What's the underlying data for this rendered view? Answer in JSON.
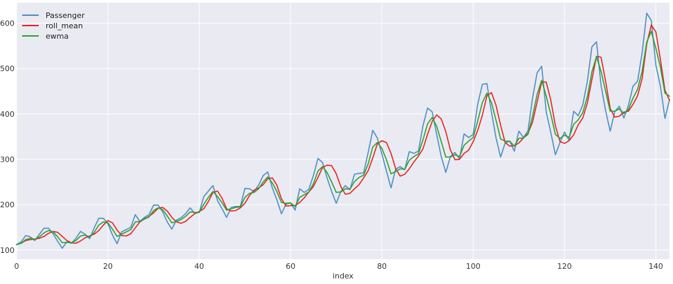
{
  "chart_data": {
    "type": "line",
    "title": "",
    "xlabel": "index",
    "ylabel": "",
    "xlim": [
      0,
      143
    ],
    "ylim": [
      80,
      645
    ],
    "xticks": [
      0,
      20,
      40,
      60,
      80,
      100,
      120,
      140
    ],
    "yticks": [
      100,
      200,
      300,
      400,
      500,
      600
    ],
    "grid": true,
    "legend_position": "top-left",
    "background": "#eaeaf2",
    "series": [
      {
        "name": "Passenger",
        "color": "#4c8fc4",
        "values": [
          112,
          118,
          132,
          129,
          121,
          135,
          148,
          148,
          136,
          119,
          104,
          118,
          115,
          126,
          141,
          135,
          125,
          149,
          170,
          170,
          158,
          133,
          114,
          140,
          145,
          150,
          178,
          163,
          172,
          178,
          199,
          199,
          184,
          162,
          146,
          166,
          171,
          180,
          193,
          181,
          183,
          218,
          230,
          242,
          209,
          191,
          172,
          194,
          196,
          196,
          236,
          235,
          229,
          243,
          264,
          272,
          237,
          211,
          180,
          201,
          204,
          188,
          235,
          227,
          234,
          264,
          302,
          293,
          259,
          229,
          203,
          229,
          242,
          233,
          267,
          269,
          270,
          315,
          364,
          347,
          312,
          274,
          237,
          278,
          284,
          277,
          317,
          313,
          318,
          374,
          413,
          405,
          355,
          306,
          271,
          306,
          315,
          301,
          356,
          348,
          355,
          422,
          465,
          467,
          404,
          347,
          305,
          336,
          340,
          318,
          362,
          348,
          363,
          435,
          491,
          505,
          404,
          359,
          310,
          337,
          360,
          342,
          406,
          396,
          420,
          472,
          548,
          559,
          463,
          407,
          362,
          405,
          417,
          391,
          419,
          461,
          472,
          535,
          622,
          606,
          508,
          461,
          390,
          432
        ]
      },
      {
        "name": "roll_mean",
        "color": "#e8231e",
        "values": [
          112,
          115,
          121,
          123,
          124,
          126,
          130,
          137,
          141,
          139,
          130,
          121,
          116,
          115,
          120,
          127,
          131,
          135,
          143,
          155,
          165,
          160,
          144,
          132,
          131,
          136,
          149,
          162,
          169,
          174,
          182,
          192,
          194,
          186,
          172,
          162,
          159,
          163,
          172,
          180,
          185,
          191,
          207,
          227,
          230,
          214,
          191,
          186,
          187,
          193,
          203,
          220,
          232,
          237,
          244,
          257,
          259,
          243,
          213,
          197,
          198,
          198,
          205,
          215,
          228,
          240,
          260,
          282,
          287,
          286,
          268,
          240,
          223,
          225,
          235,
          244,
          259,
          275,
          303,
          334,
          341,
          337,
          313,
          280,
          263,
          267,
          279,
          294,
          307,
          323,
          355,
          383,
          398,
          389,
          361,
          321,
          299,
          300,
          313,
          320,
          339,
          364,
          397,
          440,
          447,
          419,
          375,
          337,
          329,
          330,
          336,
          347,
          357,
          382,
          426,
          471,
          470,
          430,
          374,
          339,
          335,
          341,
          354,
          376,
          391,
          424,
          476,
          527,
          525,
          472,
          412,
          393,
          395,
          404,
          406,
          421,
          440,
          478,
          554,
          596,
          581,
          520,
          452,
          430
        ]
      },
      {
        "name": "ewma",
        "color": "#2ca02c",
        "values": [
          112,
          115,
          123,
          126,
          124,
          129,
          138,
          143,
          140,
          129,
          116,
          117,
          116,
          121,
          131,
          133,
          129,
          139,
          155,
          162,
          160,
          146,
          130,
          135,
          140,
          145,
          162,
          163,
          168,
          173,
          187,
          193,
          189,
          175,
          160,
          163,
          167,
          174,
          184,
          183,
          183,
          201,
          216,
          229,
          218,
          204,
          188,
          191,
          194,
          195,
          216,
          225,
          227,
          235,
          250,
          261,
          248,
          229,
          205,
          203,
          204,
          196,
          216,
          222,
          228,
          246,
          274,
          284,
          271,
          250,
          227,
          228,
          235,
          234,
          251,
          260,
          265,
          290,
          327,
          337,
          324,
          299,
          268,
          273,
          279,
          278,
          298,
          306,
          312,
          343,
          378,
          392,
          373,
          339,
          305,
          305,
          310,
          306,
          331,
          340,
          348,
          385,
          425,
          446,
          425,
          386,
          345,
          340,
          340,
          329,
          346,
          347,
          355,
          395,
          443,
          474,
          439,
          399,
          355,
          346,
          353,
          348,
          377,
          387,
          403,
          438,
          493,
          526,
          494,
          450,
          406,
          406,
          411,
          401,
          410,
          435,
          454,
          494,
          558,
          582,
          545,
          503,
          446,
          439
        ]
      }
    ]
  }
}
